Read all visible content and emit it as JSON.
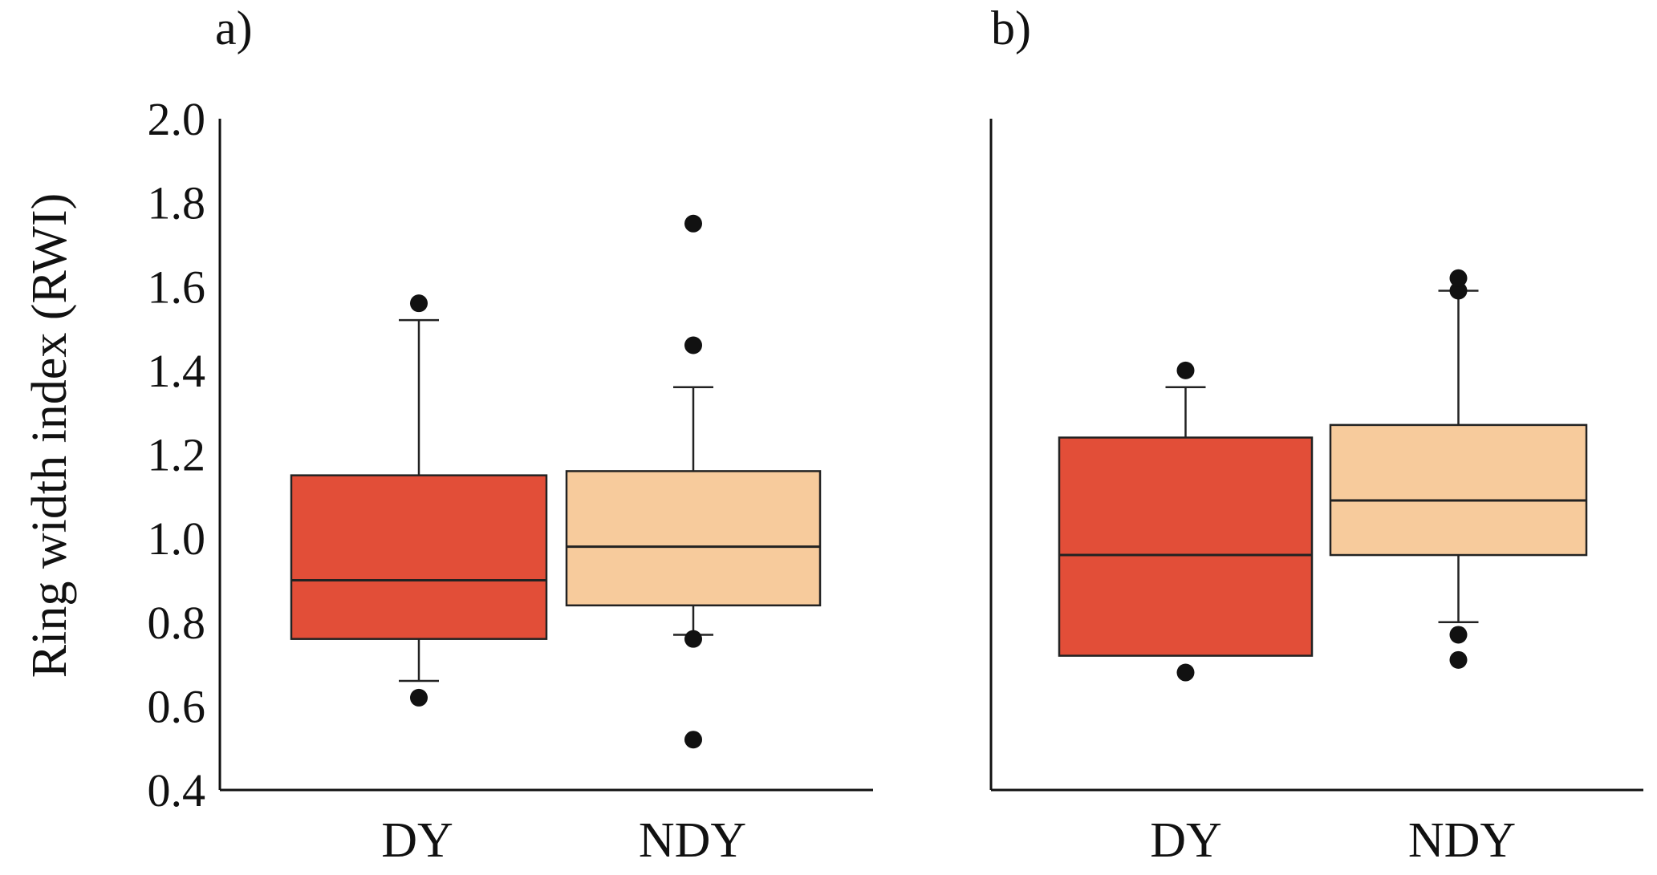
{
  "chart_data": [
    {
      "type": "box",
      "panel_label": "a)",
      "ylabel": "Ring width index (RWI)",
      "ylim": [
        0.4,
        2.0
      ],
      "yticks": [
        "0.4",
        "0.6",
        "0.8",
        "1.0",
        "1.2",
        "1.4",
        "1.6",
        "1.8",
        "2.0"
      ],
      "categories": [
        "DY",
        "NDY"
      ],
      "boxes": [
        {
          "name": "DY",
          "color": "#E24E38",
          "whisker_low": 0.66,
          "q1": 0.76,
          "median": 0.9,
          "q3": 1.15,
          "whisker_high": 1.52,
          "outliers": [
            0.62,
            1.56
          ]
        },
        {
          "name": "NDY",
          "color": "#F7CB9C",
          "whisker_low": 0.77,
          "q1": 0.84,
          "median": 0.98,
          "q3": 1.16,
          "whisker_high": 1.36,
          "outliers": [
            0.52,
            0.76,
            1.46,
            1.75
          ]
        }
      ]
    },
    {
      "type": "box",
      "panel_label": "b)",
      "ylim": [
        0.4,
        2.0
      ],
      "categories": [
        "DY",
        "NDY"
      ],
      "boxes": [
        {
          "name": "DY",
          "color": "#E24E38",
          "whisker_low": 0.72,
          "q1": 0.72,
          "median": 0.96,
          "q3": 1.24,
          "whisker_high": 1.36,
          "outliers": [
            0.68,
            1.4
          ]
        },
        {
          "name": "NDY",
          "color": "#F7CB9C",
          "whisker_low": 0.8,
          "q1": 0.96,
          "median": 1.09,
          "q3": 1.27,
          "whisker_high": 1.59,
          "outliers": [
            0.71,
            0.77,
            1.59,
            1.62
          ]
        }
      ]
    }
  ]
}
